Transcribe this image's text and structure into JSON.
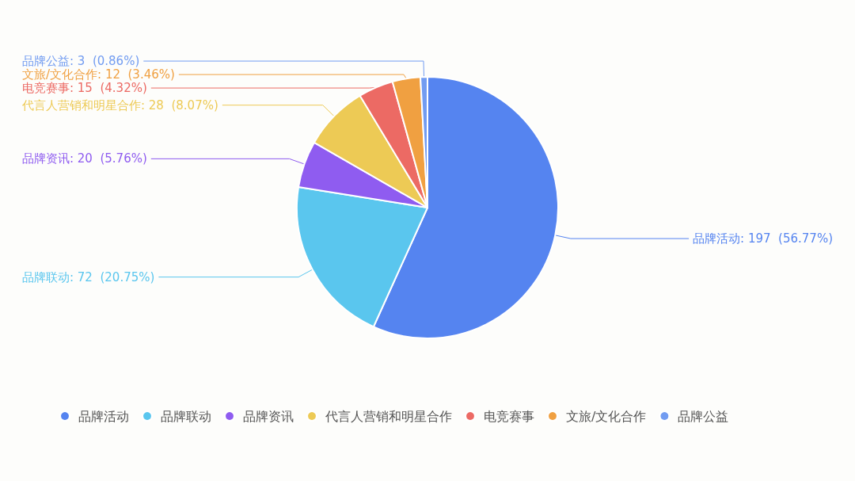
{
  "chart_data": {
    "type": "pie",
    "categories": [
      "品牌活动",
      "品牌联动",
      "品牌资讯",
      "代言人营销和明星合作",
      "电竞赛事",
      "文旅/文化合作",
      "品牌公益"
    ],
    "values": [
      197,
      72,
      20,
      28,
      15,
      12,
      3
    ],
    "value_labels": [
      ": 197  (56.77%)",
      ": 72  (20.75%)",
      ": 20  (5.76%)",
      ": 28  (8.07%)",
      ": 15  (4.32%)",
      ": 12  (3.46%)",
      ": 3  (0.86%)"
    ],
    "colors": [
      "#5584f0",
      "#5ac6ee",
      "#8f5cf0",
      "#edca55",
      "#ec6a64",
      "#f0a041",
      "#729cf1"
    ],
    "legend": "bottom"
  }
}
